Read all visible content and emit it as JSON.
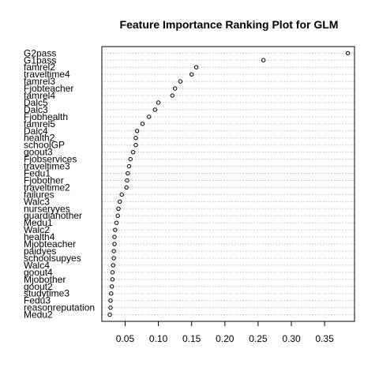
{
  "chart_data": {
    "type": "scatter",
    "title": "Feature Importance Ranking Plot for GLM",
    "xlabel": "",
    "ylabel": "",
    "xlim": [
      0.015,
      0.395
    ],
    "x_ticks": [
      "0.05",
      "0.10",
      "0.15",
      "0.20",
      "0.25",
      "0.30",
      "0.35"
    ],
    "grid": "horizontal dotted",
    "points": [
      {
        "label": "G2pass",
        "value": 0.385
      },
      {
        "label": "G1pass",
        "value": 0.258
      },
      {
        "label": "famrel2",
        "value": 0.157
      },
      {
        "label": "traveltime4",
        "value": 0.15
      },
      {
        "label": "famrel3",
        "value": 0.133
      },
      {
        "label": "Fjobteacher",
        "value": 0.125
      },
      {
        "label": "famrel4",
        "value": 0.121
      },
      {
        "label": "Dalc5",
        "value": 0.1
      },
      {
        "label": "Dalc3",
        "value": 0.095
      },
      {
        "label": "Fjobhealth",
        "value": 0.086
      },
      {
        "label": "famrel5",
        "value": 0.076
      },
      {
        "label": "Dalc4",
        "value": 0.068
      },
      {
        "label": "health2",
        "value": 0.066
      },
      {
        "label": "schoolGP",
        "value": 0.066
      },
      {
        "label": "goout3",
        "value": 0.062
      },
      {
        "label": "Fjobservices",
        "value": 0.058
      },
      {
        "label": "traveltime3",
        "value": 0.056
      },
      {
        "label": "Fedu1",
        "value": 0.054
      },
      {
        "label": "Fjobother",
        "value": 0.053
      },
      {
        "label": "traveltime2",
        "value": 0.052
      },
      {
        "label": "failures",
        "value": 0.045
      },
      {
        "label": "Walc3",
        "value": 0.042
      },
      {
        "label": "nurseryyes",
        "value": 0.04
      },
      {
        "label": "guardianother",
        "value": 0.039
      },
      {
        "label": "Medu1",
        "value": 0.037
      },
      {
        "label": "Walc2",
        "value": 0.035
      },
      {
        "label": "health4",
        "value": 0.034
      },
      {
        "label": "Mjobteacher",
        "value": 0.034
      },
      {
        "label": "paidyes",
        "value": 0.033
      },
      {
        "label": "schoolsupyes",
        "value": 0.033
      },
      {
        "label": "Walc4",
        "value": 0.032
      },
      {
        "label": "goout4",
        "value": 0.031
      },
      {
        "label": "Mjobother",
        "value": 0.031
      },
      {
        "label": "goout2",
        "value": 0.03
      },
      {
        "label": "studytime3",
        "value": 0.029
      },
      {
        "label": "Fedu3",
        "value": 0.028
      },
      {
        "label": "reasonreputation",
        "value": 0.028
      },
      {
        "label": "Medu2",
        "value": 0.027
      }
    ]
  }
}
